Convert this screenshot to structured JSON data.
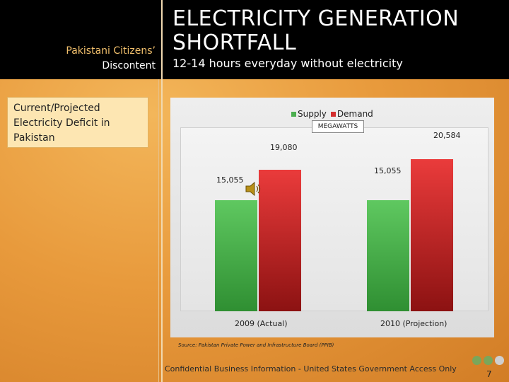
{
  "header": {
    "left_line1": "Pakistani Citizens’",
    "left_line2": "Discontent",
    "title_line1": "ELECTRICITY GENERATION",
    "title_line2": "SHORTFALL",
    "subtitle": "12-14 hours everyday without electricity"
  },
  "side_box": {
    "line1": "Current/Projected",
    "line2": "Electricity Deficit in",
    "line3": "Pakistan"
  },
  "chart_data": {
    "type": "bar",
    "categories": [
      "2009 (Actual)",
      "2010 (Projection)"
    ],
    "series": [
      {
        "name": "Supply",
        "values": [
          15055,
          15055
        ],
        "labels": [
          "15,055",
          "15,055"
        ],
        "color": "#4caf50"
      },
      {
        "name": "Demand",
        "values": [
          19080,
          20584
        ],
        "labels": [
          "19,080",
          "20,584"
        ],
        "color": "#d32f2f"
      }
    ],
    "units_label": "MEGAWATTS",
    "ylim": [
      0,
      24000
    ],
    "legend_position": "top",
    "grid": false
  },
  "source": "Source: Pakistan Private Power and Infrastructure Board (PPIB)",
  "footer": "Confidential Business Information - United States Government Access Only",
  "page_number": "7",
  "icons": [
    "speaker-icon",
    "back-arrow-icon",
    "forward-arrow-icon",
    "home-icon"
  ]
}
